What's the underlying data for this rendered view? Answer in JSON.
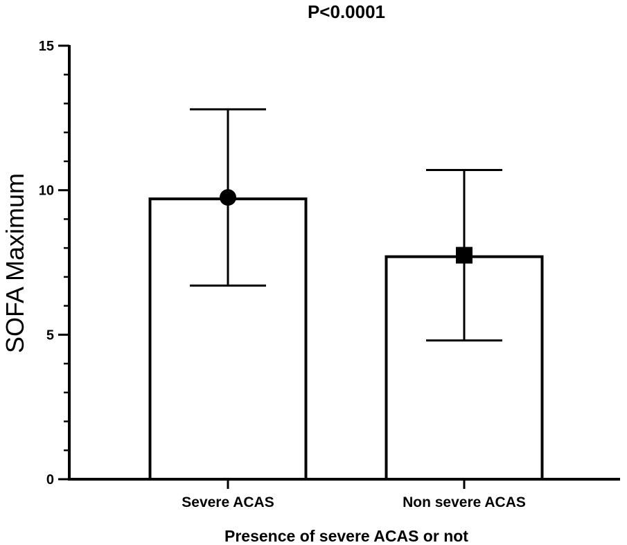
{
  "chart_data": {
    "type": "bar",
    "title": "P<0.0001",
    "xlabel": "Presence of severe ACAS or not",
    "ylabel": "SOFA Maximum",
    "categories": [
      "Severe ACAS",
      "Non severe ACAS"
    ],
    "values": [
      9.7,
      7.7
    ],
    "error_upper": [
      12.8,
      10.7
    ],
    "error_lower": [
      6.7,
      4.8
    ],
    "point_markers": [
      "circle",
      "square"
    ],
    "marker_values": [
      9.75,
      7.75
    ],
    "ylim": [
      0,
      15
    ],
    "yticks": [
      0,
      5,
      10,
      15
    ],
    "y_minor_step": 1,
    "grid": false,
    "legend": "none",
    "colors": {
      "bar_fill": "#ffffff",
      "bar_stroke": "#000000",
      "axis": "#000000",
      "marker": "#000000"
    }
  }
}
